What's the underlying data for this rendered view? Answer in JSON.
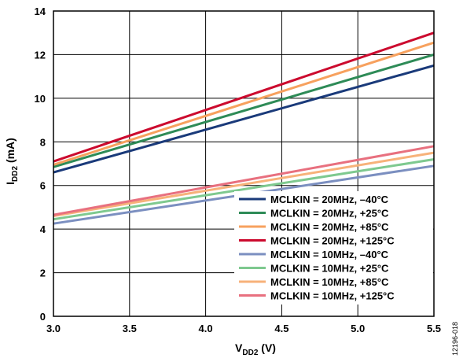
{
  "chart_data": {
    "type": "line",
    "xlabel": {
      "main": "V",
      "sub": "DD2",
      "unit": " (V)"
    },
    "ylabel": {
      "main": "I",
      "sub": "DD2",
      "unit": " (mA)"
    },
    "xlim": [
      3.0,
      5.5
    ],
    "ylim": [
      0,
      14
    ],
    "x_ticks": [
      "3.0",
      "3.5",
      "4.0",
      "4.5",
      "5.0",
      "5.5"
    ],
    "y_ticks": [
      "0",
      "2",
      "4",
      "6",
      "8",
      "10",
      "12",
      "14"
    ],
    "grid": true,
    "legend_position": "bottom-right",
    "figure_id": "12196-018",
    "series": [
      {
        "name": "MCLKIN = 20MHz, –40°C",
        "color": "#1a3a7a",
        "x": [
          3.0,
          5.5
        ],
        "y": [
          6.6,
          11.5
        ]
      },
      {
        "name": "MCLKIN = 20MHz, +25°C",
        "color": "#2e8b57",
        "x": [
          3.0,
          5.5
        ],
        "y": [
          6.85,
          12.0
        ]
      },
      {
        "name": "MCLKIN = 20MHz, +85°C",
        "color": "#f7a15e",
        "x": [
          3.0,
          5.5
        ],
        "y": [
          6.95,
          12.55
        ]
      },
      {
        "name": "MCLKIN = 20MHz, +125°C",
        "color": "#cc0a2e",
        "x": [
          3.0,
          5.5
        ],
        "y": [
          7.1,
          13.0
        ]
      },
      {
        "name": "MCLKIN = 10MHz, –40°C",
        "color": "#7b8fc0",
        "x": [
          3.0,
          5.5
        ],
        "y": [
          4.25,
          6.9
        ]
      },
      {
        "name": "MCLKIN = 10MHz, +25°C",
        "color": "#7ec98f",
        "x": [
          3.0,
          5.5
        ],
        "y": [
          4.45,
          7.2
        ]
      },
      {
        "name": "MCLKIN = 10MHz, +85°C",
        "color": "#f7b27a",
        "x": [
          3.0,
          5.5
        ],
        "y": [
          4.6,
          7.5
        ]
      },
      {
        "name": "MCLKIN = 10MHz, +125°C",
        "color": "#e8707f",
        "x": [
          3.0,
          5.5
        ],
        "y": [
          4.65,
          7.8
        ]
      }
    ]
  }
}
